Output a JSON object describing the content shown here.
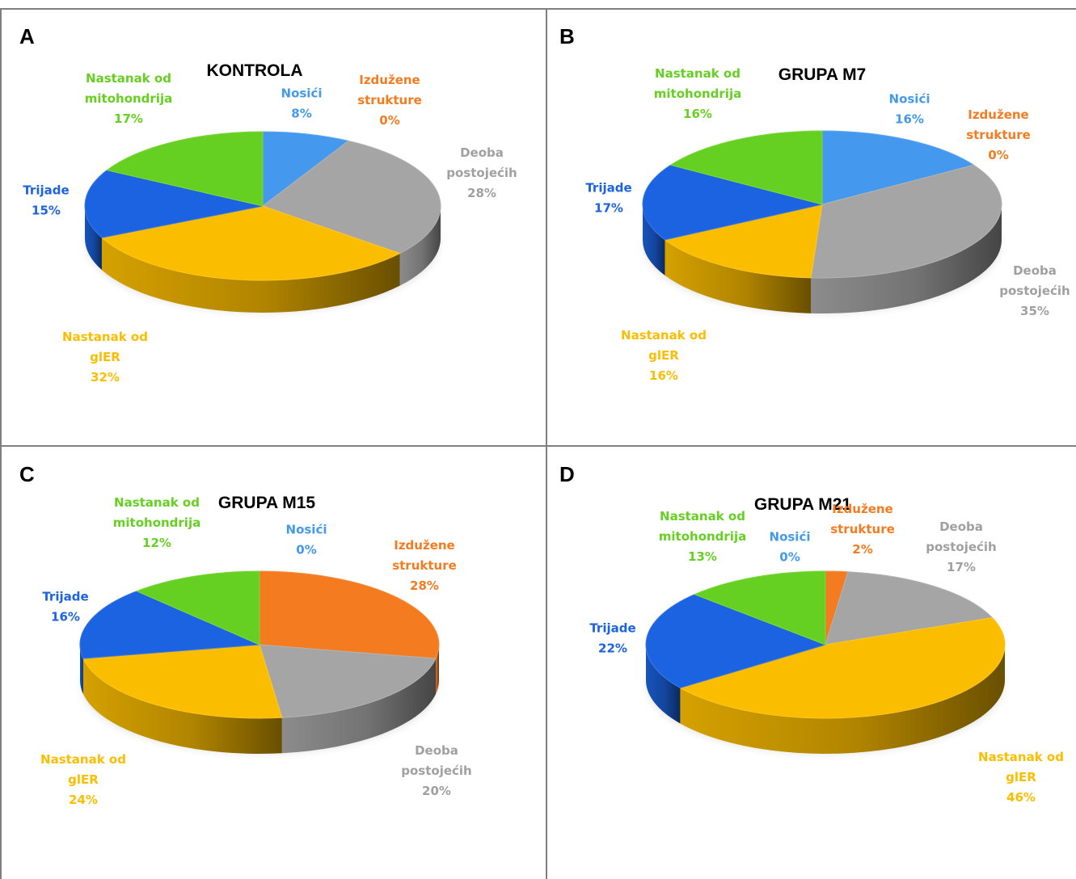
{
  "colors": {
    "Nosići": "#4499ee",
    "Izdužene strukture": "#f47b20",
    "Deoba postojećih": "#a5a5a5",
    "Nastanak od glER": "#fbbd00",
    "Trijade": "#1b63e0",
    "Nastanak od mitohondrija": "#66d022"
  },
  "chart_data": [
    {
      "type": "pie",
      "panel_letter": "A",
      "title": "KONTROLA",
      "slices": [
        {
          "key": "nosici",
          "series": "Nosići",
          "label_lines": [
            "Nosići"
          ],
          "value": 8,
          "pct_label": "8%"
        },
        {
          "key": "izduzene",
          "series": "Izdužene strukture",
          "label_lines": [
            "Izdužene",
            "strukture"
          ],
          "value": 0,
          "pct_label": "0%"
        },
        {
          "key": "deoba",
          "series": "Deoba postojećih",
          "label_lines": [
            "Deoba",
            "postojećih"
          ],
          "value": 28,
          "pct_label": "28%"
        },
        {
          "key": "gler",
          "series": "Nastanak od glER",
          "label_lines": [
            "Nastanak od",
            "glER"
          ],
          "value": 32,
          "pct_label": "32%"
        },
        {
          "key": "trijade",
          "series": "Trijade",
          "label_lines": [
            "Trijade"
          ],
          "value": 15,
          "pct_label": "15%"
        },
        {
          "key": "mito",
          "series": "Nastanak od mitohondrija",
          "label_lines": [
            "Nastanak od",
            "mitohondrija"
          ],
          "value": 17,
          "pct_label": "17%"
        }
      ]
    },
    {
      "type": "pie",
      "panel_letter": "B",
      "title": "GRUPA M7",
      "slices": [
        {
          "key": "nosici",
          "series": "Nosići",
          "label_lines": [
            "Nosići"
          ],
          "value": 16,
          "pct_label": "16%"
        },
        {
          "key": "izduzene",
          "series": "Izdužene strukture",
          "label_lines": [
            "Izdužene",
            "strukture"
          ],
          "value": 0,
          "pct_label": "0%"
        },
        {
          "key": "deoba",
          "series": "Deoba postojećih",
          "label_lines": [
            "Deoba",
            "postojećih"
          ],
          "value": 35,
          "pct_label": "35%"
        },
        {
          "key": "gler",
          "series": "Nastanak od glER",
          "label_lines": [
            "Nastanak od",
            "glER"
          ],
          "value": 16,
          "pct_label": "16%"
        },
        {
          "key": "trijade",
          "series": "Trijade",
          "label_lines": [
            "Trijade"
          ],
          "value": 17,
          "pct_label": "17%"
        },
        {
          "key": "mito",
          "series": "Nastanak od mitohondrija",
          "label_lines": [
            "Nastanak od",
            "mitohondrija"
          ],
          "value": 16,
          "pct_label": "16%"
        }
      ]
    },
    {
      "type": "pie",
      "panel_letter": "C",
      "title": "GRUPA M15",
      "slices": [
        {
          "key": "nosici",
          "series": "Nosići",
          "label_lines": [
            "Nosići"
          ],
          "value": 0,
          "pct_label": "0%"
        },
        {
          "key": "izduzene",
          "series": "Izdužene strukture",
          "label_lines": [
            "Izdužene",
            "strukture"
          ],
          "value": 28,
          "pct_label": "28%"
        },
        {
          "key": "deoba",
          "series": "Deoba postojećih",
          "label_lines": [
            "Deoba",
            "postojećih"
          ],
          "value": 20,
          "pct_label": "20%"
        },
        {
          "key": "gler",
          "series": "Nastanak od glER",
          "label_lines": [
            "Nastanak od",
            "glER"
          ],
          "value": 24,
          "pct_label": "24%"
        },
        {
          "key": "trijade",
          "series": "Trijade",
          "label_lines": [
            "Trijade"
          ],
          "value": 16,
          "pct_label": "16%"
        },
        {
          "key": "mito",
          "series": "Nastanak od mitohondrija",
          "label_lines": [
            "Nastanak od",
            "mitohondrija"
          ],
          "value": 12,
          "pct_label": "12%"
        }
      ]
    },
    {
      "type": "pie",
      "panel_letter": "D",
      "title": "GRUPA M21",
      "slices": [
        {
          "key": "nosici",
          "series": "Nosići",
          "label_lines": [
            "Nosići"
          ],
          "value": 0,
          "pct_label": "0%"
        },
        {
          "key": "izduzene",
          "series": "Izdužene strukture",
          "label_lines": [
            "Izdužene",
            "strukture"
          ],
          "value": 2,
          "pct_label": "2%"
        },
        {
          "key": "deoba",
          "series": "Deoba postojećih",
          "label_lines": [
            "Deoba",
            "postojećih"
          ],
          "value": 17,
          "pct_label": "17%"
        },
        {
          "key": "gler",
          "series": "Nastanak od glER",
          "label_lines": [
            "Nastanak od",
            "glER"
          ],
          "value": 46,
          "pct_label": "46%"
        },
        {
          "key": "trijade",
          "series": "Trijade",
          "label_lines": [
            "Trijade"
          ],
          "value": 22,
          "pct_label": "22%"
        },
        {
          "key": "mito",
          "series": "Nastanak od mitohondrija",
          "label_lines": [
            "Nastanak od",
            "mitohondrija"
          ],
          "value": 13,
          "pct_label": "13%"
        }
      ]
    }
  ]
}
